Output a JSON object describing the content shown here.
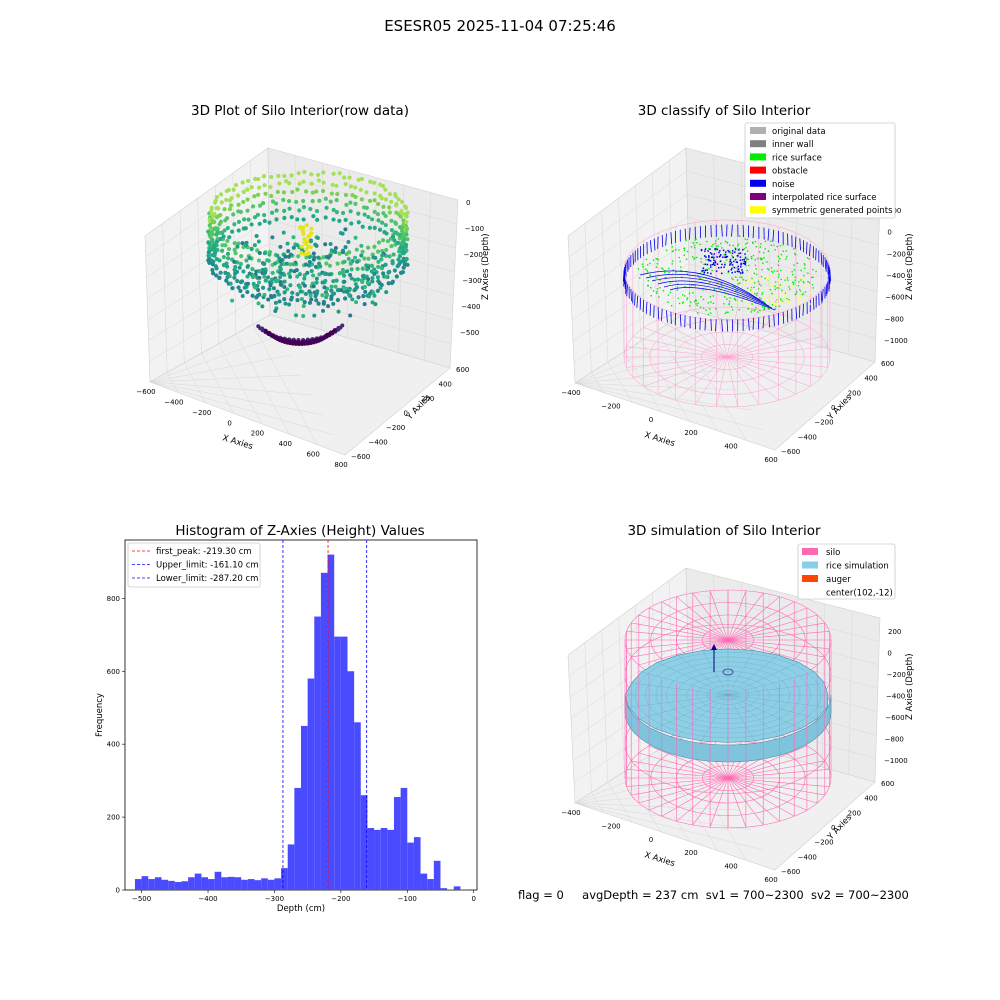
{
  "suptitle": "ESESR05 2025-11-04 07:25:46",
  "panels": {
    "raw": {
      "title": "3D Plot of Silo Interior(row data)",
      "xlabel": "X Axies",
      "ylabel": "Y Axies",
      "zlabel": "Z Axies (Depth)",
      "xticks": [
        "−600",
        "−400",
        "−200",
        "0",
        "200",
        "400",
        "600",
        "800"
      ],
      "yticks": [
        "−600",
        "−400",
        "−200",
        "0",
        "200",
        "400",
        "600"
      ],
      "zticks": [
        "0",
        "−100",
        "−200",
        "−300",
        "−400",
        "−500"
      ]
    },
    "classify": {
      "title": "3D classify of Silo Interior",
      "xlabel": "X Axies",
      "ylabel": "Y Axies",
      "zlabel": "Z Axies (Depth)",
      "xticks": [
        "−400",
        "−200",
        "0",
        "200",
        "400",
        "600"
      ],
      "yticks": [
        "−600",
        "−400",
        "−200",
        "0",
        "200",
        "400",
        "600"
      ],
      "zticks": [
        "200",
        "0",
        "−200",
        "−400",
        "−600",
        "−800",
        "−1000"
      ],
      "legend": [
        {
          "label": "original data",
          "color": "#b0b0b0"
        },
        {
          "label": "inner wall",
          "color": "#808080"
        },
        {
          "label": "rice surface",
          "color": "#00ee00"
        },
        {
          "label": "obstacle",
          "color": "#ff0000"
        },
        {
          "label": "noise",
          "color": "#0000ee"
        },
        {
          "label": "interpolated rice surface",
          "color": "#800080"
        },
        {
          "label": "symmetric generated points",
          "color": "#ffff00"
        }
      ]
    },
    "simulation": {
      "title": "3D simulation of Silo Interior",
      "xlabel": "X Axies",
      "ylabel": "Y Axies",
      "zlabel": "Z Axies (Depth)",
      "xticks": [
        "−400",
        "−200",
        "0",
        "200",
        "400",
        "600"
      ],
      "yticks": [
        "−600",
        "−400",
        "−200",
        "0",
        "200",
        "400",
        "600"
      ],
      "zticks": [
        "200",
        "0",
        "−200",
        "−400",
        "−600",
        "−800",
        "−1000"
      ],
      "legend": [
        {
          "label": "silo",
          "color": "#ff69b4"
        },
        {
          "label": "rice simulation",
          "color": "#87ceeb"
        },
        {
          "label": "auger",
          "color": "#ff4500"
        },
        {
          "label": "center(102,-12)",
          "color": ""
        }
      ]
    }
  },
  "footer": {
    "flag": "flag = 0",
    "avgDepth": "avgDepth = 237 cm",
    "sv1": "sv1 = 700~2300",
    "sv2": "sv2 = 700~2300"
  },
  "colors": {
    "bars": "#4a4aff",
    "peak_line": "#ff0000",
    "limit_line": "#0000ff"
  },
  "chart_data": [
    {
      "type": "bar",
      "title": "Histogram of Z-Axies (Height) Values",
      "xlabel": "Depth (cm)",
      "ylabel": "Frequency",
      "xlim": [
        -525,
        5
      ],
      "ylim": [
        0,
        960
      ],
      "xticks": [
        -500,
        -400,
        -300,
        -200,
        -100,
        0
      ],
      "yticks": [
        0,
        200,
        400,
        600,
        800
      ],
      "bin_width": 10,
      "bin_left_edges": [
        -510,
        -500,
        -490,
        -480,
        -470,
        -460,
        -450,
        -440,
        -430,
        -420,
        -410,
        -400,
        -390,
        -380,
        -370,
        -360,
        -350,
        -340,
        -330,
        -320,
        -310,
        -300,
        -290,
        -280,
        -270,
        -260,
        -250,
        -240,
        -230,
        -220,
        -210,
        -200,
        -190,
        -180,
        -170,
        -160,
        -150,
        -140,
        -130,
        -120,
        -110,
        -100,
        -90,
        -80,
        -70,
        -60,
        -50,
        -40,
        -30,
        -20
      ],
      "values": [
        30,
        38,
        30,
        35,
        28,
        25,
        22,
        24,
        35,
        45,
        35,
        30,
        50,
        35,
        36,
        35,
        28,
        30,
        27,
        32,
        28,
        32,
        60,
        125,
        280,
        450,
        580,
        750,
        870,
        920,
        695,
        695,
        600,
        460,
        260,
        170,
        165,
        170,
        165,
        255,
        280,
        130,
        145,
        45,
        30,
        80,
        5,
        1,
        10,
        1
      ],
      "vlines": [
        {
          "name": "first_peak",
          "label": "first_peak: -219.30 cm",
          "x": -219.3,
          "color": "#ff0000"
        },
        {
          "name": "Upper_limit",
          "label": "Upper_limit: -161.10 cm",
          "x": -161.1,
          "color": "#0000ff"
        },
        {
          "name": "Lower_limit",
          "label": "Lower_limit: -287.20 cm",
          "x": -287.2,
          "color": "#0000ff"
        }
      ],
      "legend_position": "top-left"
    }
  ]
}
